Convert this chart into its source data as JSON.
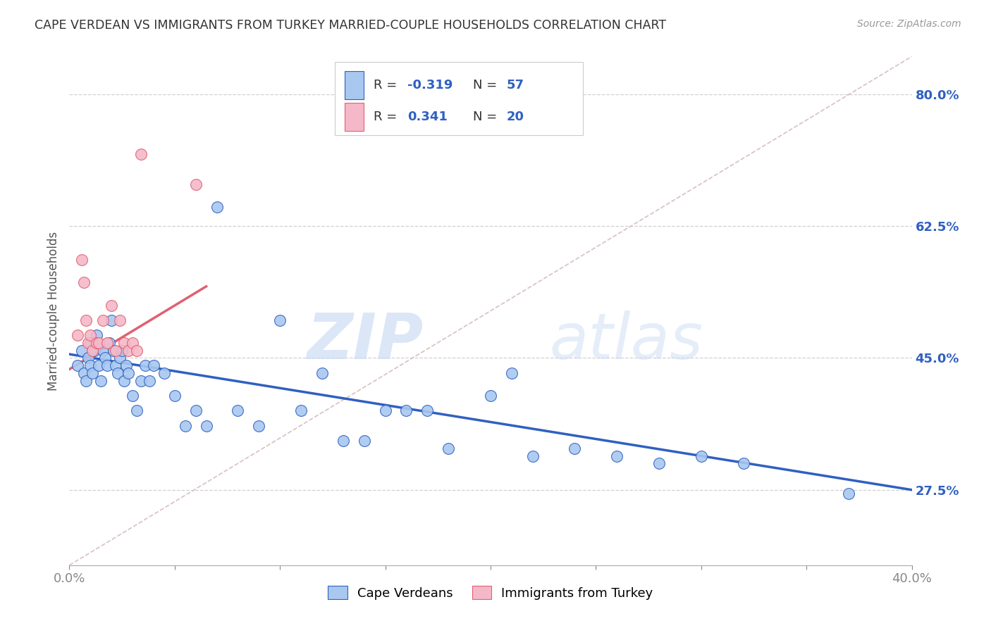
{
  "title": "CAPE VERDEAN VS IMMIGRANTS FROM TURKEY MARRIED-COUPLE HOUSEHOLDS CORRELATION CHART",
  "source": "Source: ZipAtlas.com",
  "ylabel": "Married-couple Households",
  "xmin": 0.0,
  "xmax": 0.4,
  "ymin": 0.175,
  "ymax": 0.85,
  "yticks": [
    0.275,
    0.45,
    0.625,
    0.8
  ],
  "ytick_labels": [
    "27.5%",
    "45.0%",
    "62.5%",
    "80.0%"
  ],
  "xticks": [
    0.0,
    0.05,
    0.1,
    0.15,
    0.2,
    0.25,
    0.3,
    0.35,
    0.4
  ],
  "xtick_labels": [
    "0.0%",
    "",
    "",
    "",
    "",
    "",
    "",
    "",
    "40.0%"
  ],
  "bg_color": "#ffffff",
  "grid_color": "#d0d0d0",
  "blue_color": "#a8c8f0",
  "pink_color": "#f5b8c8",
  "blue_line_color": "#3060c0",
  "pink_line_color": "#e06070",
  "diag_line_color": "#d8c0c0",
  "legend_label1": "Cape Verdeans",
  "legend_label2": "Immigrants from Turkey",
  "watermark_zip": "ZIP",
  "watermark_atlas": "atlas",
  "blue_dots_x": [
    0.004,
    0.006,
    0.007,
    0.008,
    0.009,
    0.01,
    0.01,
    0.011,
    0.012,
    0.013,
    0.014,
    0.015,
    0.016,
    0.017,
    0.018,
    0.019,
    0.02,
    0.021,
    0.022,
    0.023,
    0.024,
    0.025,
    0.026,
    0.027,
    0.028,
    0.03,
    0.032,
    0.034,
    0.036,
    0.038,
    0.04,
    0.045,
    0.05,
    0.055,
    0.06,
    0.065,
    0.07,
    0.08,
    0.09,
    0.1,
    0.11,
    0.12,
    0.13,
    0.14,
    0.15,
    0.16,
    0.17,
    0.18,
    0.2,
    0.21,
    0.22,
    0.24,
    0.26,
    0.28,
    0.3,
    0.32,
    0.37
  ],
  "blue_dots_y": [
    0.44,
    0.46,
    0.43,
    0.42,
    0.45,
    0.47,
    0.44,
    0.43,
    0.46,
    0.48,
    0.44,
    0.42,
    0.46,
    0.45,
    0.44,
    0.47,
    0.5,
    0.46,
    0.44,
    0.43,
    0.45,
    0.46,
    0.42,
    0.44,
    0.43,
    0.4,
    0.38,
    0.42,
    0.44,
    0.42,
    0.44,
    0.43,
    0.4,
    0.36,
    0.38,
    0.36,
    0.65,
    0.38,
    0.36,
    0.5,
    0.38,
    0.43,
    0.34,
    0.34,
    0.38,
    0.38,
    0.38,
    0.33,
    0.4,
    0.43,
    0.32,
    0.33,
    0.32,
    0.31,
    0.32,
    0.31,
    0.27
  ],
  "pink_dots_x": [
    0.004,
    0.006,
    0.007,
    0.008,
    0.009,
    0.01,
    0.011,
    0.013,
    0.014,
    0.016,
    0.018,
    0.02,
    0.022,
    0.024,
    0.026,
    0.028,
    0.03,
    0.032,
    0.034,
    0.06
  ],
  "pink_dots_y": [
    0.48,
    0.58,
    0.55,
    0.5,
    0.47,
    0.48,
    0.46,
    0.47,
    0.47,
    0.5,
    0.47,
    0.52,
    0.46,
    0.5,
    0.47,
    0.46,
    0.47,
    0.46,
    0.72,
    0.68
  ],
  "blue_trendline_x": [
    0.0,
    0.4
  ],
  "blue_trendline_y": [
    0.455,
    0.275
  ],
  "pink_trendline_x": [
    0.0,
    0.065
  ],
  "pink_trendline_y": [
    0.435,
    0.545
  ],
  "diag_trendline_x": [
    0.0,
    0.4
  ],
  "diag_trendline_y": [
    0.175,
    0.85
  ]
}
